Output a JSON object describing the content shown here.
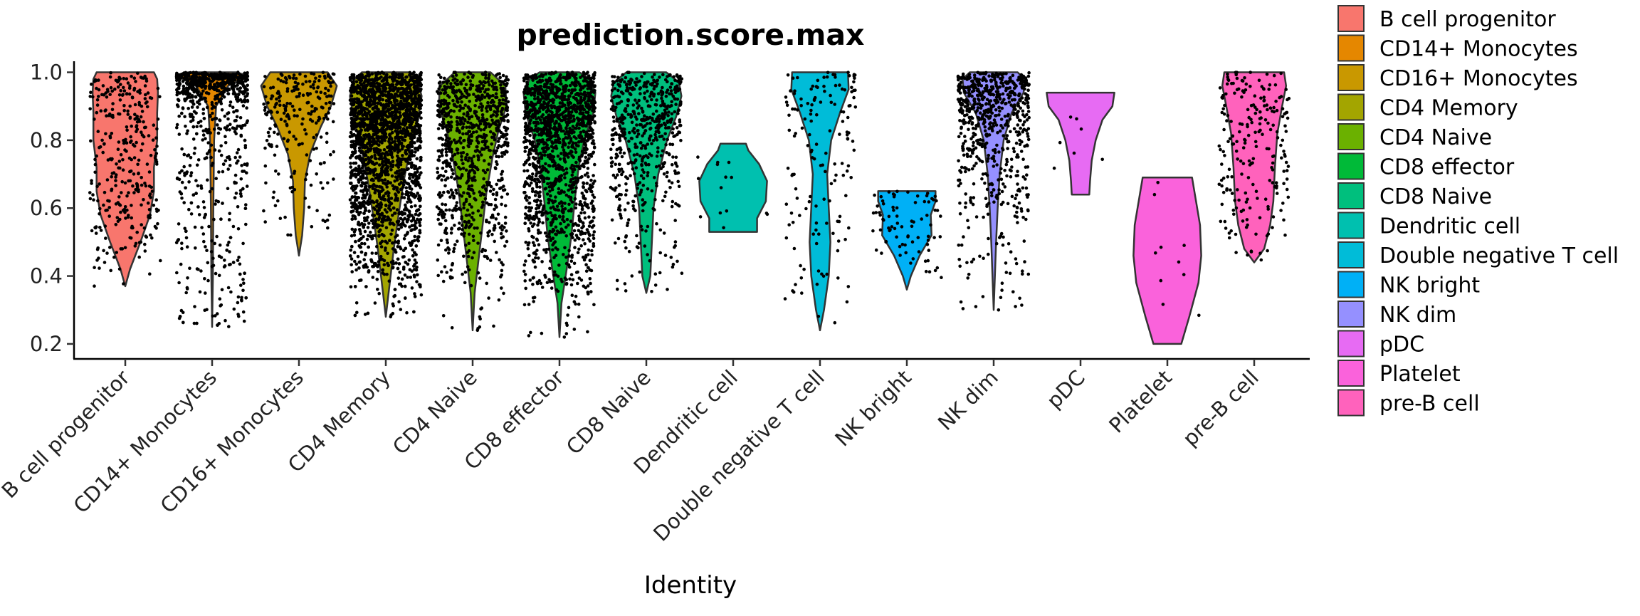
{
  "chart_data": {
    "type": "violin",
    "title": "prediction.score.max",
    "xlabel": "Identity",
    "ylabel": "",
    "ylim": [
      0.16,
      1.02
    ],
    "yticks": [
      0.2,
      0.4,
      0.6,
      0.8,
      1.0
    ],
    "ytick_labels": [
      "0.2",
      "0.4",
      "0.6",
      "0.8",
      "1.0"
    ],
    "grid": false,
    "legend_position": "right",
    "categories": [
      {
        "name": "B cell progenitor",
        "color": "#F8766D",
        "min": 0.37,
        "max": 1.0,
        "n": 340,
        "density": [
          [
            0.37,
            0
          ],
          [
            0.42,
            0.12
          ],
          [
            0.5,
            0.38
          ],
          [
            0.58,
            0.62
          ],
          [
            0.65,
            0.72
          ],
          [
            0.72,
            0.72
          ],
          [
            0.8,
            0.8
          ],
          [
            0.88,
            0.8
          ],
          [
            0.94,
            0.82
          ],
          [
            0.98,
            0.8
          ],
          [
            1.0,
            0.72
          ]
        ]
      },
      {
        "name": "CD14+ Monocytes",
        "color": "#E58700",
        "min": 0.25,
        "max": 1.0,
        "n": 900,
        "density": [
          [
            0.25,
            0
          ],
          [
            0.4,
            0.02
          ],
          [
            0.6,
            0.03
          ],
          [
            0.8,
            0.05
          ],
          [
            0.9,
            0.1
          ],
          [
            0.96,
            0.4
          ],
          [
            0.99,
            0.9
          ],
          [
            1.0,
            0.6
          ]
        ]
      },
      {
        "name": "CD16+ Monocytes",
        "color": "#C99800",
        "min": 0.46,
        "max": 1.0,
        "n": 230,
        "density": [
          [
            0.46,
            0
          ],
          [
            0.52,
            0.08
          ],
          [
            0.6,
            0.13
          ],
          [
            0.68,
            0.15
          ],
          [
            0.76,
            0.28
          ],
          [
            0.84,
            0.55
          ],
          [
            0.9,
            0.8
          ],
          [
            0.96,
            0.95
          ],
          [
            1.0,
            0.72
          ]
        ]
      },
      {
        "name": "CD4 Memory",
        "color": "#A3A500",
        "min": 0.28,
        "max": 1.0,
        "n": 2600,
        "density": [
          [
            0.28,
            0
          ],
          [
            0.38,
            0.1
          ],
          [
            0.48,
            0.2
          ],
          [
            0.58,
            0.32
          ],
          [
            0.68,
            0.45
          ],
          [
            0.78,
            0.62
          ],
          [
            0.86,
            0.8
          ],
          [
            0.93,
            0.9
          ],
          [
            0.98,
            0.78
          ],
          [
            1.0,
            0.6
          ]
        ]
      },
      {
        "name": "CD4 Naive",
        "color": "#6BB100",
        "min": 0.24,
        "max": 1.0,
        "n": 900,
        "density": [
          [
            0.24,
            0
          ],
          [
            0.35,
            0.05
          ],
          [
            0.45,
            0.15
          ],
          [
            0.55,
            0.25
          ],
          [
            0.65,
            0.35
          ],
          [
            0.75,
            0.5
          ],
          [
            0.83,
            0.65
          ],
          [
            0.9,
            0.85
          ],
          [
            0.96,
            0.82
          ],
          [
            1.0,
            0.45
          ]
        ]
      },
      {
        "name": "CD8 effector",
        "color": "#00BA38",
        "min": 0.22,
        "max": 1.0,
        "n": 1500,
        "density": [
          [
            0.22,
            0
          ],
          [
            0.32,
            0.05
          ],
          [
            0.42,
            0.18
          ],
          [
            0.52,
            0.3
          ],
          [
            0.62,
            0.38
          ],
          [
            0.72,
            0.48
          ],
          [
            0.8,
            0.62
          ],
          [
            0.88,
            0.85
          ],
          [
            0.94,
            0.9
          ],
          [
            0.98,
            0.75
          ],
          [
            1.0,
            0.5
          ]
        ]
      },
      {
        "name": "CD8 Naive",
        "color": "#00BF7D",
        "min": 0.35,
        "max": 1.0,
        "n": 560,
        "density": [
          [
            0.35,
            0
          ],
          [
            0.4,
            0.1
          ],
          [
            0.5,
            0.14
          ],
          [
            0.6,
            0.18
          ],
          [
            0.7,
            0.3
          ],
          [
            0.8,
            0.52
          ],
          [
            0.87,
            0.75
          ],
          [
            0.93,
            0.88
          ],
          [
            0.97,
            0.82
          ],
          [
            1.0,
            0.5
          ]
        ]
      },
      {
        "name": "Dendritic cell",
        "color": "#00C0AF",
        "min": 0.53,
        "max": 0.8,
        "n": 14,
        "density": [
          [
            0.53,
            0.6
          ],
          [
            0.57,
            0.6
          ],
          [
            0.62,
            0.82
          ],
          [
            0.68,
            0.85
          ],
          [
            0.73,
            0.65
          ],
          [
            0.77,
            0.38
          ],
          [
            0.79,
            0.32
          ]
        ]
      },
      {
        "name": "Double negative T cell",
        "color": "#00BCD8",
        "min": 0.24,
        "max": 1.0,
        "n": 150,
        "density": [
          [
            0.24,
            0
          ],
          [
            0.3,
            0.1
          ],
          [
            0.4,
            0.22
          ],
          [
            0.5,
            0.26
          ],
          [
            0.6,
            0.22
          ],
          [
            0.7,
            0.18
          ],
          [
            0.8,
            0.28
          ],
          [
            0.88,
            0.5
          ],
          [
            0.95,
            0.72
          ],
          [
            1.0,
            0.7
          ]
        ]
      },
      {
        "name": "NK bright",
        "color": "#00B0F6",
        "min": 0.36,
        "max": 0.65,
        "n": 80,
        "density": [
          [
            0.36,
            0
          ],
          [
            0.4,
            0.1
          ],
          [
            0.46,
            0.32
          ],
          [
            0.52,
            0.62
          ],
          [
            0.58,
            0.6
          ],
          [
            0.62,
            0.72
          ],
          [
            0.65,
            0.72
          ]
        ]
      },
      {
        "name": "NK dim",
        "color": "#9590FF",
        "min": 0.3,
        "max": 1.0,
        "n": 700,
        "density": [
          [
            0.3,
            0
          ],
          [
            0.4,
            0.03
          ],
          [
            0.5,
            0.06
          ],
          [
            0.6,
            0.1
          ],
          [
            0.7,
            0.15
          ],
          [
            0.8,
            0.25
          ],
          [
            0.88,
            0.45
          ],
          [
            0.94,
            0.75
          ],
          [
            0.98,
            0.78
          ],
          [
            1.0,
            0.6
          ]
        ]
      },
      {
        "name": "pDC",
        "color": "#E76BF3",
        "min": 0.64,
        "max": 0.94,
        "n": 7,
        "density": [
          [
            0.64,
            0.22
          ],
          [
            0.68,
            0.24
          ],
          [
            0.74,
            0.28
          ],
          [
            0.8,
            0.38
          ],
          [
            0.86,
            0.55
          ],
          [
            0.9,
            0.8
          ],
          [
            0.94,
            0.85
          ]
        ]
      },
      {
        "name": "Platelet",
        "color": "#FA62DB",
        "min": 0.2,
        "max": 0.69,
        "n": 10,
        "density": [
          [
            0.2,
            0.35
          ],
          [
            0.28,
            0.55
          ],
          [
            0.38,
            0.78
          ],
          [
            0.46,
            0.85
          ],
          [
            0.55,
            0.82
          ],
          [
            0.62,
            0.72
          ],
          [
            0.69,
            0.62
          ]
        ]
      },
      {
        "name": "pre-B cell",
        "color": "#FF62BC",
        "min": 0.44,
        "max": 1.0,
        "n": 220,
        "density": [
          [
            0.44,
            0
          ],
          [
            0.48,
            0.25
          ],
          [
            0.55,
            0.4
          ],
          [
            0.62,
            0.48
          ],
          [
            0.72,
            0.52
          ],
          [
            0.82,
            0.58
          ],
          [
            0.9,
            0.7
          ],
          [
            0.96,
            0.8
          ],
          [
            1.0,
            0.75
          ]
        ]
      }
    ]
  }
}
